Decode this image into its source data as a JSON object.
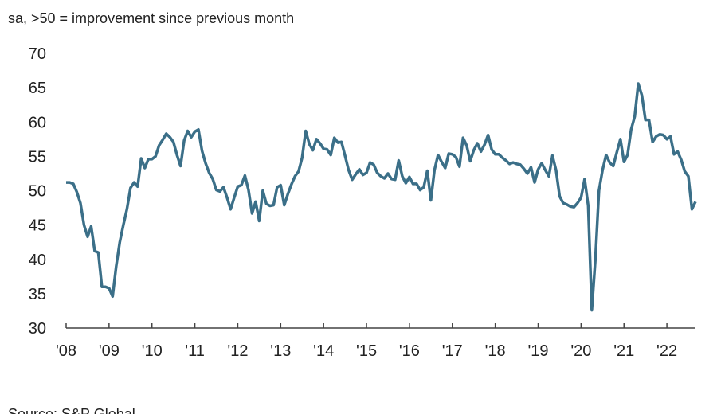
{
  "chart_data": {
    "type": "line",
    "subtitle": "sa, >50 = improvement since previous month",
    "source": "Source: S&P Global",
    "categories": [
      "'08",
      null,
      null,
      null,
      null,
      null,
      null,
      null,
      null,
      null,
      null,
      null,
      "'09",
      null,
      null,
      null,
      null,
      null,
      null,
      null,
      null,
      null,
      null,
      null,
      "'10",
      null,
      null,
      null,
      null,
      null,
      null,
      null,
      null,
      null,
      null,
      null,
      "'11",
      null,
      null,
      null,
      null,
      null,
      null,
      null,
      null,
      null,
      null,
      null,
      "'12",
      null,
      null,
      null,
      null,
      null,
      null,
      null,
      null,
      null,
      null,
      null,
      "'13",
      null,
      null,
      null,
      null,
      null,
      null,
      null,
      null,
      null,
      null,
      null,
      "'14",
      null,
      null,
      null,
      null,
      null,
      null,
      null,
      null,
      null,
      null,
      null,
      "'15",
      null,
      null,
      null,
      null,
      null,
      null,
      null,
      null,
      null,
      null,
      null,
      "'16",
      null,
      null,
      null,
      null,
      null,
      null,
      null,
      null,
      null,
      null,
      null,
      "'17",
      null,
      null,
      null,
      null,
      null,
      null,
      null,
      null,
      null,
      null,
      null,
      "'18",
      null,
      null,
      null,
      null,
      null,
      null,
      null,
      null,
      null,
      null,
      null,
      "'19",
      null,
      null,
      null,
      null,
      null,
      null,
      null,
      null,
      null,
      null,
      null,
      "'20",
      null,
      null,
      null,
      null,
      null,
      null,
      null,
      null,
      null,
      null,
      null,
      "'21",
      null,
      null,
      null,
      null,
      null,
      null,
      null,
      null,
      null,
      null,
      null,
      "'22",
      null,
      null,
      null,
      null,
      null,
      null,
      null,
      null
    ],
    "values": [
      51.2,
      51.2,
      51.0,
      49.8,
      48.2,
      45.0,
      43.3,
      44.8,
      41.2,
      41.0,
      36.0,
      36.0,
      35.8,
      34.6,
      39.0,
      42.5,
      45.0,
      47.3,
      50.4,
      51.2,
      50.6,
      54.7,
      53.3,
      54.6,
      54.6,
      55.0,
      56.6,
      57.4,
      58.3,
      57.8,
      57.1,
      55.2,
      53.6,
      57.3,
      58.7,
      57.8,
      58.6,
      58.9,
      55.8,
      54.0,
      52.6,
      51.7,
      50.1,
      49.9,
      50.5,
      49.0,
      47.3,
      49.0,
      50.6,
      50.8,
      52.2,
      50.1,
      46.7,
      48.4,
      45.6,
      50.0,
      48.1,
      47.8,
      47.9,
      50.5,
      50.8,
      47.9,
      49.5,
      50.9,
      52.1,
      52.8,
      54.8,
      58.7,
      56.8,
      55.9,
      57.5,
      56.9,
      56.1,
      56.0,
      55.2,
      57.7,
      57.0,
      57.1,
      55.1,
      53.0,
      51.6,
      52.4,
      53.1,
      52.3,
      52.6,
      54.1,
      53.8,
      52.6,
      52.1,
      51.8,
      52.5,
      51.7,
      51.6,
      54.4,
      52.1,
      51.1,
      52.0,
      51.0,
      51.0,
      50.1,
      50.5,
      52.9,
      48.6,
      53.0,
      55.2,
      54.2,
      53.3,
      55.4,
      55.3,
      54.9,
      53.5,
      57.7,
      56.6,
      54.3,
      55.9,
      56.9,
      55.7,
      56.7,
      58.1,
      56.0,
      55.3,
      55.3,
      54.8,
      54.4,
      53.9,
      54.1,
      53.9,
      53.8,
      53.2,
      52.5,
      53.4,
      51.2,
      53.1,
      54.0,
      53.0,
      52.1,
      55.1,
      53.0,
      49.2,
      48.2,
      48.0,
      47.7,
      47.6,
      48.2,
      49.0,
      51.7,
      47.8,
      32.6,
      40.0,
      50.0,
      53.0,
      55.2,
      54.1,
      53.6,
      55.6,
      57.5,
      54.2,
      55.2,
      58.9,
      60.8,
      65.6,
      63.9,
      60.3,
      60.3,
      57.1,
      57.9,
      58.2,
      58.1,
      57.5,
      57.9,
      55.3,
      55.7,
      54.5,
      52.8,
      52.1,
      47.3,
      48.4
    ],
    "color": "#3b6f88",
    "ylim": [
      30,
      70
    ],
    "yticks": [
      30,
      35,
      40,
      45,
      50,
      55,
      60,
      65,
      70
    ],
    "grid": false
  }
}
